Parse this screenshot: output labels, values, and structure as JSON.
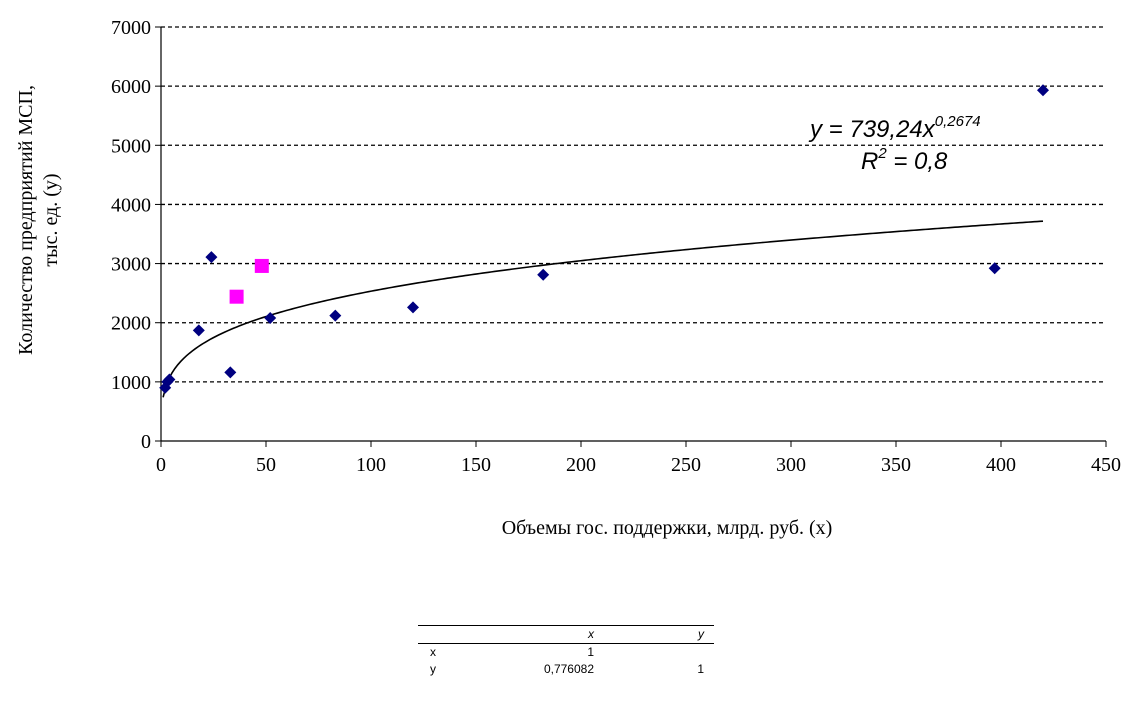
{
  "chart_data": {
    "type": "scatter",
    "title": "",
    "xlabel": "Объемы гос. поддержки, млрд. руб. (x)",
    "ylabel_lines": [
      "Количество предприятий МСП,",
      "тыс. ед. (y)"
    ],
    "xlim": [
      0,
      450
    ],
    "ylim": [
      0,
      7000
    ],
    "xticks": [
      "0",
      "50",
      "100",
      "150",
      "200",
      "250",
      "300",
      "350",
      "400",
      "450"
    ],
    "yticks": [
      "0",
      "1000",
      "2000",
      "3000",
      "4000",
      "5000",
      "6000",
      "7000"
    ],
    "grid": "horizontal-dashed",
    "series": [
      {
        "marker": "diamond",
        "color": "#000080",
        "points": [
          {
            "x": 2,
            "y": 900
          },
          {
            "x": 3,
            "y": 1000
          },
          {
            "x": 4,
            "y": 1040
          },
          {
            "x": 18,
            "y": 1870
          },
          {
            "x": 24,
            "y": 3110
          },
          {
            "x": 33,
            "y": 1160
          },
          {
            "x": 52,
            "y": 2080
          },
          {
            "x": 83,
            "y": 2120
          },
          {
            "x": 120,
            "y": 2260
          },
          {
            "x": 182,
            "y": 2810
          },
          {
            "x": 397,
            "y": 2920
          },
          {
            "x": 420,
            "y": 5930
          }
        ]
      },
      {
        "marker": "square",
        "color": "#ff00ff",
        "points": [
          {
            "x": 36,
            "y": 2440
          },
          {
            "x": 48,
            "y": 2960
          }
        ]
      }
    ],
    "trendline": {
      "type": "power",
      "a": 739.24,
      "b": 0.2674,
      "x_range": [
        1,
        420
      ],
      "equation_prefix": "y = 739,24x",
      "equation_exponent": "0,2674",
      "r2_prefix": "R",
      "r2_exponent": "2",
      "r2_suffix": " = 0,8"
    }
  },
  "correlation_table": {
    "header": [
      "",
      "x",
      "y"
    ],
    "rows": [
      [
        "x",
        "1",
        ""
      ],
      [
        "y",
        "0,776082",
        "1"
      ]
    ]
  },
  "colors": {
    "diamond": "#000080",
    "square": "#ff00ff",
    "grid": "#000000",
    "trendline": "#000000"
  }
}
